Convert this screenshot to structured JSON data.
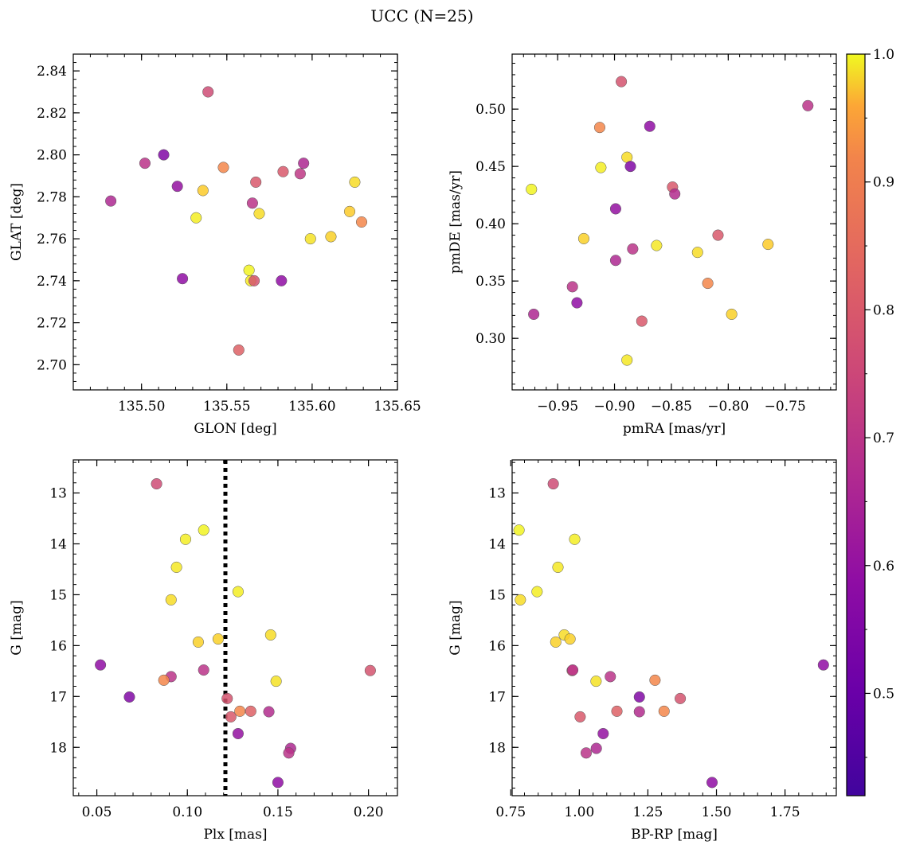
{
  "figure": {
    "title": "UCC (N=25)"
  },
  "colorbar": {
    "colormap": "plasma",
    "range": [
      0.42,
      1.0
    ],
    "ticks": [
      0.5,
      0.6,
      0.7,
      0.8,
      0.9,
      1.0
    ],
    "tick_labels": [
      "0.5",
      "0.6",
      "0.7",
      "0.8",
      "0.9",
      "1.0"
    ]
  },
  "chart_data": [
    {
      "type": "scatter",
      "xlabel": "GLON [deg]",
      "ylabel": "GLAT [deg]",
      "xlim": [
        135.46,
        135.65
      ],
      "ylim": [
        2.688,
        2.848
      ],
      "y_inverted": false,
      "xticks": [
        135.5,
        135.55,
        135.6,
        135.65
      ],
      "xtick_labels": [
        "135.50",
        "135.55",
        "135.60",
        "135.65"
      ],
      "yticks": [
        2.7,
        2.72,
        2.74,
        2.76,
        2.78,
        2.8,
        2.82,
        2.84
      ],
      "ytick_labels": [
        "2.70",
        "2.72",
        "2.74",
        "2.76",
        "2.78",
        "2.80",
        "2.82",
        "2.84"
      ],
      "points": [
        {
          "x": 135.482,
          "y": 2.778,
          "c": 0.55
        },
        {
          "x": 135.502,
          "y": 2.796,
          "c": 0.58
        },
        {
          "x": 135.513,
          "y": 2.8,
          "c": 0.45
        },
        {
          "x": 135.521,
          "y": 2.785,
          "c": 0.49
        },
        {
          "x": 135.524,
          "y": 2.741,
          "c": 0.48
        },
        {
          "x": 135.532,
          "y": 2.77,
          "c": 0.98
        },
        {
          "x": 135.536,
          "y": 2.783,
          "c": 0.92
        },
        {
          "x": 135.539,
          "y": 2.83,
          "c": 0.64
        },
        {
          "x": 135.548,
          "y": 2.794,
          "c": 0.78
        },
        {
          "x": 135.557,
          "y": 2.707,
          "c": 0.69
        },
        {
          "x": 135.563,
          "y": 2.745,
          "c": 0.99
        },
        {
          "x": 135.564,
          "y": 2.74,
          "c": 0.97
        },
        {
          "x": 135.566,
          "y": 2.74,
          "c": 0.66
        },
        {
          "x": 135.565,
          "y": 2.777,
          "c": 0.58
        },
        {
          "x": 135.567,
          "y": 2.787,
          "c": 0.67
        },
        {
          "x": 135.569,
          "y": 2.772,
          "c": 0.95
        },
        {
          "x": 135.582,
          "y": 2.74,
          "c": 0.48
        },
        {
          "x": 135.583,
          "y": 2.792,
          "c": 0.67
        },
        {
          "x": 135.593,
          "y": 2.791,
          "c": 0.59
        },
        {
          "x": 135.595,
          "y": 2.796,
          "c": 0.55
        },
        {
          "x": 135.599,
          "y": 2.76,
          "c": 0.96
        },
        {
          "x": 135.611,
          "y": 2.761,
          "c": 0.93
        },
        {
          "x": 135.622,
          "y": 2.773,
          "c": 0.92
        },
        {
          "x": 135.625,
          "y": 2.787,
          "c": 0.95
        },
        {
          "x": 135.629,
          "y": 2.768,
          "c": 0.78
        }
      ]
    },
    {
      "type": "scatter",
      "xlabel": "pmRA [mas/yr]",
      "ylabel": "pmDE [mas/yr]",
      "xlim": [
        -0.99,
        -0.705
      ],
      "ylim": [
        0.255,
        0.548
      ],
      "y_inverted": false,
      "xticks": [
        -0.95,
        -0.9,
        -0.85,
        -0.8,
        -0.75
      ],
      "xtick_labels": [
        "−0.95",
        "−0.90",
        "−0.85",
        "−0.80",
        "−0.75"
      ],
      "yticks": [
        0.3,
        0.35,
        0.4,
        0.45,
        0.5
      ],
      "ytick_labels": [
        "0.30",
        "0.35",
        "0.40",
        "0.45",
        "0.50"
      ],
      "points": [
        {
          "x": -0.973,
          "y": 0.43,
          "c": 0.99
        },
        {
          "x": -0.971,
          "y": 0.321,
          "c": 0.55
        },
        {
          "x": -0.937,
          "y": 0.345,
          "c": 0.58
        },
        {
          "x": -0.933,
          "y": 0.331,
          "c": 0.48
        },
        {
          "x": -0.927,
          "y": 0.387,
          "c": 0.93
        },
        {
          "x": -0.913,
          "y": 0.484,
          "c": 0.78
        },
        {
          "x": -0.912,
          "y": 0.449,
          "c": 0.98
        },
        {
          "x": -0.899,
          "y": 0.413,
          "c": 0.49
        },
        {
          "x": -0.899,
          "y": 0.368,
          "c": 0.55
        },
        {
          "x": -0.894,
          "y": 0.524,
          "c": 0.66
        },
        {
          "x": -0.889,
          "y": 0.458,
          "c": 0.95
        },
        {
          "x": -0.889,
          "y": 0.281,
          "c": 0.97
        },
        {
          "x": -0.886,
          "y": 0.45,
          "c": 0.45
        },
        {
          "x": -0.884,
          "y": 0.378,
          "c": 0.58
        },
        {
          "x": -0.876,
          "y": 0.315,
          "c": 0.67
        },
        {
          "x": -0.869,
          "y": 0.485,
          "c": 0.48
        },
        {
          "x": -0.863,
          "y": 0.381,
          "c": 0.97
        },
        {
          "x": -0.849,
          "y": 0.432,
          "c": 0.67
        },
        {
          "x": -0.847,
          "y": 0.426,
          "c": 0.56
        },
        {
          "x": -0.827,
          "y": 0.375,
          "c": 0.95
        },
        {
          "x": -0.818,
          "y": 0.348,
          "c": 0.78
        },
        {
          "x": -0.809,
          "y": 0.39,
          "c": 0.67
        },
        {
          "x": -0.797,
          "y": 0.321,
          "c": 0.93
        },
        {
          "x": -0.765,
          "y": 0.382,
          "c": 0.92
        },
        {
          "x": -0.73,
          "y": 0.503,
          "c": 0.58
        }
      ]
    },
    {
      "type": "scatter",
      "xlabel": "Plx [mas]",
      "ylabel": "G [mag]",
      "xlim": [
        0.037,
        0.216
      ],
      "ylim": [
        18.95,
        12.35
      ],
      "y_inverted": true,
      "vline": 0.121,
      "xticks": [
        0.05,
        0.1,
        0.15,
        0.2
      ],
      "xtick_labels": [
        "0.05",
        "0.10",
        "0.15",
        "0.20"
      ],
      "yticks": [
        13,
        14,
        15,
        16,
        17,
        18
      ],
      "ytick_labels": [
        "13",
        "14",
        "15",
        "16",
        "17",
        "18"
      ],
      "points": [
        {
          "x": 0.083,
          "y": 12.82,
          "c": 0.64
        },
        {
          "x": 0.109,
          "y": 13.73,
          "c": 0.99
        },
        {
          "x": 0.099,
          "y": 13.91,
          "c": 0.98
        },
        {
          "x": 0.094,
          "y": 14.46,
          "c": 0.97
        },
        {
          "x": 0.128,
          "y": 14.94,
          "c": 0.98
        },
        {
          "x": 0.091,
          "y": 15.1,
          "c": 0.95
        },
        {
          "x": 0.146,
          "y": 15.79,
          "c": 0.95
        },
        {
          "x": 0.117,
          "y": 15.87,
          "c": 0.93
        },
        {
          "x": 0.106,
          "y": 15.93,
          "c": 0.93
        },
        {
          "x": 0.052,
          "y": 16.38,
          "c": 0.48
        },
        {
          "x": 0.201,
          "y": 16.49,
          "c": 0.66
        },
        {
          "x": 0.109,
          "y": 16.48,
          "c": 0.58
        },
        {
          "x": 0.091,
          "y": 16.61,
          "c": 0.58
        },
        {
          "x": 0.087,
          "y": 16.68,
          "c": 0.78
        },
        {
          "x": 0.149,
          "y": 16.7,
          "c": 0.96
        },
        {
          "x": 0.068,
          "y": 17.01,
          "c": 0.45
        },
        {
          "x": 0.122,
          "y": 17.04,
          "c": 0.66
        },
        {
          "x": 0.129,
          "y": 17.29,
          "c": 0.78
        },
        {
          "x": 0.135,
          "y": 17.29,
          "c": 0.69
        },
        {
          "x": 0.145,
          "y": 17.3,
          "c": 0.56
        },
        {
          "x": 0.124,
          "y": 17.4,
          "c": 0.67
        },
        {
          "x": 0.128,
          "y": 17.73,
          "c": 0.49
        },
        {
          "x": 0.157,
          "y": 18.02,
          "c": 0.55
        },
        {
          "x": 0.156,
          "y": 18.11,
          "c": 0.58
        },
        {
          "x": 0.15,
          "y": 18.69,
          "c": 0.48
        }
      ]
    },
    {
      "type": "scatter",
      "xlabel": "BP-RP [mag]",
      "ylabel": "G [mag]",
      "xlim": [
        0.755,
        1.937
      ],
      "ylim": [
        18.95,
        12.35
      ],
      "y_inverted": true,
      "xticks": [
        0.75,
        1.0,
        1.25,
        1.5,
        1.75
      ],
      "xtick_labels": [
        "0.75",
        "1.00",
        "1.25",
        "1.50",
        "1.75"
      ],
      "yticks": [
        13,
        14,
        15,
        16,
        17,
        18
      ],
      "ytick_labels": [
        "13",
        "14",
        "15",
        "16",
        "17",
        "18"
      ],
      "points": [
        {
          "x": 0.905,
          "y": 12.82,
          "c": 0.64
        },
        {
          "x": 0.78,
          "y": 13.73,
          "c": 0.99
        },
        {
          "x": 0.983,
          "y": 13.91,
          "c": 0.98
        },
        {
          "x": 0.922,
          "y": 14.46,
          "c": 0.97
        },
        {
          "x": 0.846,
          "y": 14.94,
          "c": 0.98
        },
        {
          "x": 0.785,
          "y": 15.1,
          "c": 0.95
        },
        {
          "x": 0.945,
          "y": 15.79,
          "c": 0.95
        },
        {
          "x": 0.966,
          "y": 15.87,
          "c": 0.93
        },
        {
          "x": 0.914,
          "y": 15.93,
          "c": 0.93
        },
        {
          "x": 1.89,
          "y": 16.38,
          "c": 0.48
        },
        {
          "x": 0.974,
          "y": 16.49,
          "c": 0.66
        },
        {
          "x": 0.976,
          "y": 16.48,
          "c": 0.58
        },
        {
          "x": 1.113,
          "y": 16.61,
          "c": 0.58
        },
        {
          "x": 1.276,
          "y": 16.68,
          "c": 0.78
        },
        {
          "x": 1.061,
          "y": 16.7,
          "c": 0.96
        },
        {
          "x": 1.219,
          "y": 17.01,
          "c": 0.45
        },
        {
          "x": 1.368,
          "y": 17.04,
          "c": 0.66
        },
        {
          "x": 1.309,
          "y": 17.29,
          "c": 0.78
        },
        {
          "x": 1.137,
          "y": 17.29,
          "c": 0.69
        },
        {
          "x": 1.219,
          "y": 17.3,
          "c": 0.56
        },
        {
          "x": 1.003,
          "y": 17.4,
          "c": 0.67
        },
        {
          "x": 1.087,
          "y": 17.73,
          "c": 0.49
        },
        {
          "x": 1.062,
          "y": 18.02,
          "c": 0.55
        },
        {
          "x": 1.025,
          "y": 18.11,
          "c": 0.58
        },
        {
          "x": 1.484,
          "y": 18.69,
          "c": 0.48
        }
      ]
    }
  ]
}
